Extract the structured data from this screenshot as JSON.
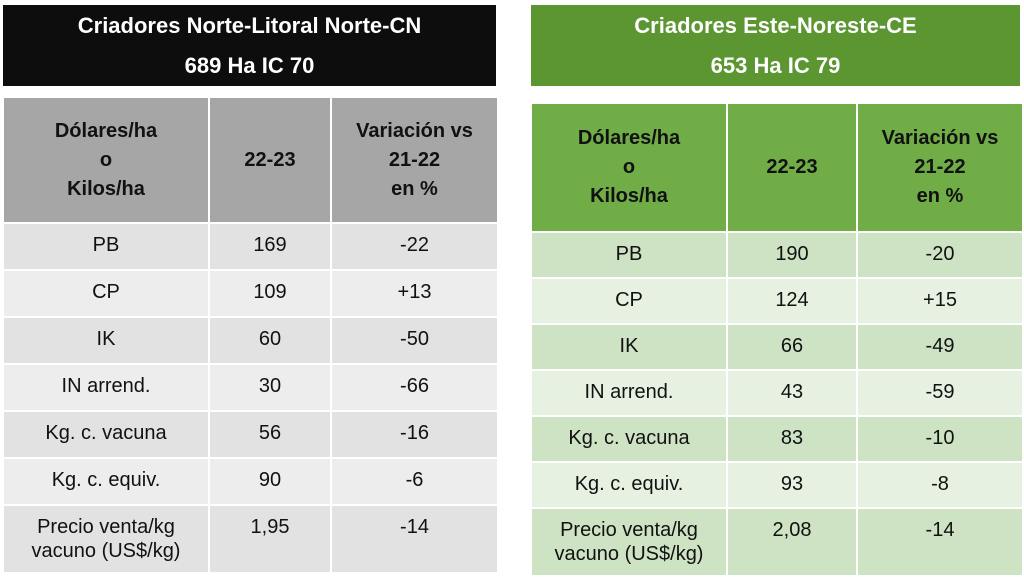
{
  "left": {
    "title_line1": "Criadores Norte-Litoral Norte-CN",
    "title_line2": "689  Ha IC 70",
    "header": {
      "col1": [
        "Dólares/ha",
        "o",
        "Kilos/ha"
      ],
      "col2": "22-23",
      "col3": [
        "Variación vs",
        "21-22",
        "en %"
      ]
    },
    "rows": [
      {
        "label": "PB",
        "value": "169",
        "variation": "-22"
      },
      {
        "label": "CP",
        "value": "109",
        "variation": "+13"
      },
      {
        "label": "IK",
        "value": "60",
        "variation": "-50"
      },
      {
        "label": "IN arrend.",
        "value": "30",
        "variation": "-66"
      },
      {
        "label": "Kg. c. vacuna",
        "value": "56",
        "variation": "-16"
      },
      {
        "label": "Kg. c. equiv.",
        "value": "90",
        "variation": "-6"
      },
      {
        "label": [
          "Precio venta/kg",
          "vacuno (US$/kg)"
        ],
        "value": "1,95",
        "variation": "-14"
      }
    ]
  },
  "right": {
    "title_line1": "Criadores Este-Noreste-CE",
    "title_line2": "653 Ha  IC 79",
    "header": {
      "col1": [
        "Dólares/ha",
        "o",
        "Kilos/ha"
      ],
      "col2": "22-23",
      "col3": [
        "Variación vs",
        "21-22",
        "en %"
      ]
    },
    "rows": [
      {
        "label": "PB",
        "value": "190",
        "variation": "-20"
      },
      {
        "label": "CP",
        "value": "124",
        "variation": "+15"
      },
      {
        "label": "IK",
        "value": "66",
        "variation": "-49"
      },
      {
        "label": "IN arrend.",
        "value": "43",
        "variation": "-59"
      },
      {
        "label": "Kg. c. vacuna",
        "value": "83",
        "variation": "-10"
      },
      {
        "label": "Kg. c. equiv.",
        "value": "93",
        "variation": "-8"
      },
      {
        "label": [
          "Precio venta/kg",
          "vacuno (US$/kg)"
        ],
        "value": "2,08",
        "variation": "-14"
      }
    ]
  },
  "colors": {
    "left_title_bg": "#0d0d0d",
    "left_header_bg": "#a6a6a6",
    "left_row_dark": "#e2e2e2",
    "left_row_light": "#ededed",
    "right_title_bg": "#5b9631",
    "right_header_bg": "#70ad47",
    "right_row_dark": "#cee3c3",
    "right_row_light": "#e7f1e2"
  }
}
